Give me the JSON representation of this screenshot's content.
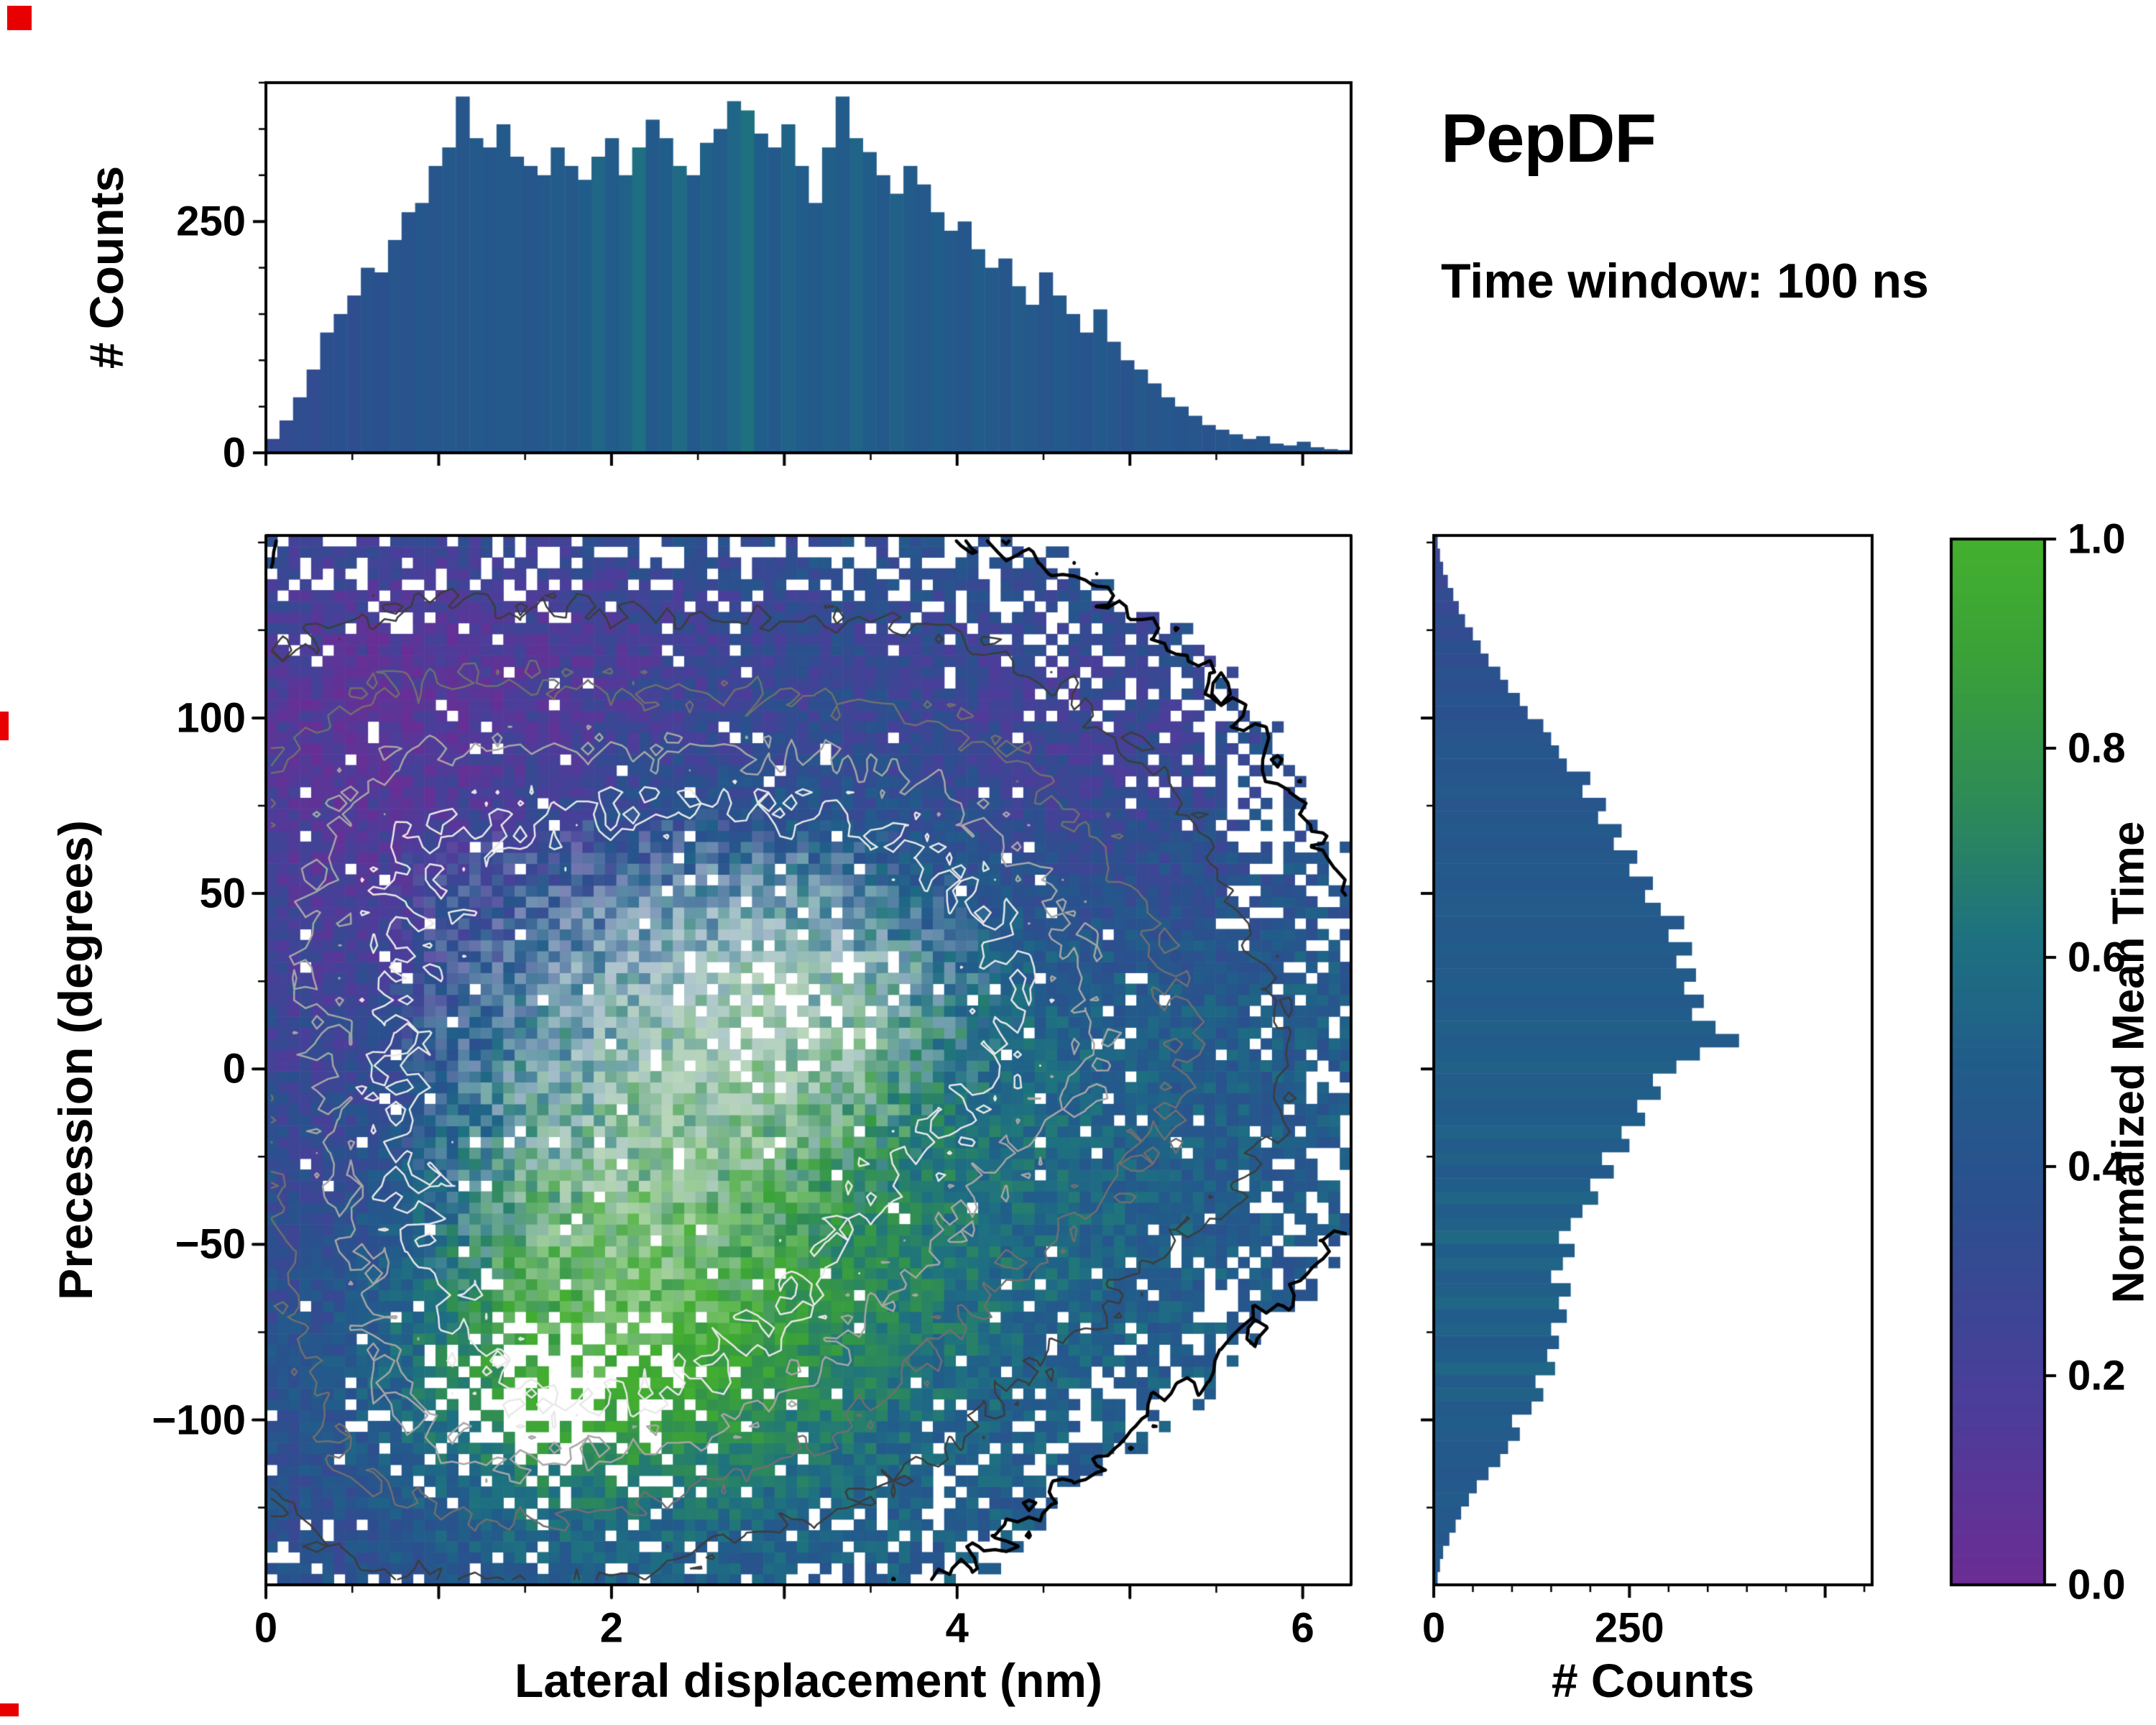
{
  "chart_data": {
    "type": "heatmap",
    "title": "PepDF",
    "subtitle": "Time window: 100 ns",
    "main": {
      "xlabel": "Lateral displacement (nm)",
      "ylabel": "Precession (degrees)",
      "xlim": [
        0,
        6.28
      ],
      "ylim": [
        -147,
        152
      ],
      "xtick_values": [
        0,
        2,
        4,
        6
      ],
      "xtick_labels": [
        "0",
        "2",
        "4",
        "6"
      ],
      "xminor_step": 0.5,
      "ytick_values": [
        100,
        50,
        0,
        -50,
        -100
      ],
      "ytick_labels": [
        "100",
        "50",
        "0",
        "−50",
        "−100"
      ],
      "yminor_step": 25,
      "grid_nx": 96,
      "grid_ny": 96,
      "seed": 1337,
      "density_blobs": [
        [
          0.55,
          2.3,
          -5,
          1.9,
          90
        ],
        [
          0.85,
          2.9,
          18,
          1.0,
          42
        ],
        [
          0.55,
          1.5,
          -35,
          0.9,
          45
        ],
        [
          0.45,
          1.2,
          70,
          1.0,
          38
        ],
        [
          0.5,
          2.5,
          -75,
          1.0,
          32
        ],
        [
          0.35,
          3.9,
          65,
          1.1,
          45
        ],
        [
          0.33,
          4.8,
          -5,
          1.1,
          40
        ],
        [
          0.3,
          1.0,
          -112,
          0.9,
          28
        ],
        [
          0.25,
          0.5,
          30,
          0.7,
          70
        ]
      ],
      "hole_blobs": [
        [
          0.35,
          2.95,
          20,
          0.35,
          14
        ],
        [
          0.75,
          1.7,
          -95,
          0.45,
          16
        ]
      ],
      "occupancy_threshold": 0.13,
      "base_hole_prob": 0.035,
      "sparse_hole_gain": 1.4,
      "value_base": 0.46,
      "value_noise": 0.22,
      "value_blobs": [
        [
          -0.28,
          0.9,
          95,
          1.3,
          50
        ],
        [
          -0.22,
          0.35,
          -30,
          0.55,
          80
        ],
        [
          -0.2,
          4.7,
          85,
          0.9,
          35
        ],
        [
          -0.1,
          2.5,
          120,
          2.0,
          25
        ],
        [
          0.32,
          2.2,
          -60,
          1.2,
          38
        ],
        [
          0.25,
          1.9,
          -92,
          0.8,
          22
        ],
        [
          0.12,
          2.9,
          -15,
          1.6,
          55
        ],
        [
          0.18,
          3.0,
          18,
          0.8,
          30
        ]
      ],
      "contour_levels": [
        0.14,
        0.32,
        0.55,
        0.8,
        1.05
      ],
      "contour_colors": [
        "#000000",
        "#3c3c3c",
        "#6f6f6f",
        "#a6a6a6",
        "#e8e8e8"
      ],
      "contour_widths": [
        4.5,
        2.5,
        2.5,
        2.5,
        2.5
      ]
    },
    "top_hist": {
      "type": "bar",
      "ylabel": "# Counts",
      "ylim": [
        0,
        400
      ],
      "ytick_values": [
        0,
        250
      ],
      "ytick_labels": [
        "0",
        "250"
      ],
      "yminor_step": 50,
      "counts": [
        15,
        35,
        60,
        90,
        130,
        150,
        170,
        200,
        195,
        230,
        260,
        270,
        310,
        330,
        385,
        340,
        330,
        355,
        320,
        310,
        300,
        330,
        310,
        295,
        320,
        340,
        300,
        330,
        360,
        340,
        310,
        300,
        335,
        350,
        380,
        370,
        345,
        330,
        355,
        310,
        270,
        330,
        385,
        340,
        325,
        300,
        280,
        310,
        290,
        260,
        240,
        250,
        220,
        200,
        210,
        180,
        160,
        195,
        170,
        150,
        130,
        155,
        120,
        100,
        90,
        75,
        60,
        50,
        40,
        30,
        25,
        20,
        15,
        18,
        10,
        8,
        12,
        6,
        4,
        3
      ],
      "color_t": [
        0.3,
        0.32,
        0.35,
        0.33,
        0.36,
        0.38,
        0.35,
        0.4,
        0.38,
        0.42,
        0.4,
        0.44,
        0.42,
        0.45,
        0.43,
        0.46,
        0.44,
        0.47,
        0.45,
        0.43,
        0.46,
        0.48,
        0.45,
        0.5,
        0.55,
        0.48,
        0.52,
        0.6,
        0.47,
        0.5,
        0.58,
        0.46,
        0.52,
        0.48,
        0.55,
        0.62,
        0.5,
        0.47,
        0.53,
        0.49,
        0.46,
        0.51,
        0.48,
        0.54,
        0.5,
        0.47,
        0.52,
        0.48,
        0.45,
        0.5,
        0.47,
        0.44,
        0.49,
        0.46,
        0.43,
        0.48,
        0.45,
        0.42,
        0.47,
        0.44,
        0.41,
        0.46,
        0.43,
        0.4,
        0.45,
        0.42,
        0.44,
        0.41,
        0.43,
        0.4,
        0.42,
        0.44,
        0.41,
        0.43,
        0.4,
        0.42,
        0.44,
        0.41,
        0.43,
        0.42
      ]
    },
    "right_hist": {
      "type": "bar",
      "xlabel": "# Counts",
      "xlim": [
        0,
        560
      ],
      "xtick_values": [
        0,
        250
      ],
      "xtick_labels": [
        "0",
        "250"
      ],
      "xminor_step": 50,
      "counts": [
        5,
        8,
        12,
        20,
        28,
        35,
        45,
        55,
        70,
        85,
        95,
        110,
        100,
        125,
        140,
        130,
        155,
        145,
        160,
        150,
        170,
        160,
        175,
        150,
        165,
        180,
        160,
        175,
        190,
        210,
        200,
        230,
        215,
        250,
        240,
        270,
        260,
        290,
        280,
        310,
        340,
        390,
        360,
        330,
        345,
        320,
        335,
        310,
        330,
        300,
        320,
        290,
        270,
        280,
        250,
        260,
        230,
        240,
        210,
        220,
        190,
        200,
        170,
        160,
        150,
        140,
        120,
        110,
        95,
        85,
        70,
        60,
        50,
        40,
        32,
        25,
        18,
        12,
        8,
        5
      ],
      "color_t": [
        0.45,
        0.43,
        0.46,
        0.44,
        0.47,
        0.45,
        0.48,
        0.46,
        0.44,
        0.47,
        0.45,
        0.48,
        0.5,
        0.46,
        0.52,
        0.48,
        0.55,
        0.5,
        0.47,
        0.53,
        0.49,
        0.55,
        0.51,
        0.48,
        0.54,
        0.5,
        0.57,
        0.52,
        0.49,
        0.54,
        0.5,
        0.47,
        0.52,
        0.48,
        0.53,
        0.5,
        0.47,
        0.51,
        0.48,
        0.52,
        0.5,
        0.48,
        0.51,
        0.49,
        0.47,
        0.5,
        0.48,
        0.46,
        0.49,
        0.47,
        0.45,
        0.48,
        0.46,
        0.44,
        0.47,
        0.45,
        0.43,
        0.46,
        0.44,
        0.42,
        0.45,
        0.43,
        0.41,
        0.44,
        0.42,
        0.4,
        0.38,
        0.41,
        0.36,
        0.39,
        0.34,
        0.37,
        0.32,
        0.35,
        0.3,
        0.33,
        0.28,
        0.31,
        0.26,
        0.29
      ]
    },
    "colorbar": {
      "label": "Normalized Mean Time",
      "lim": [
        0,
        1
      ],
      "tick_values": [
        1.0,
        0.8,
        0.6,
        0.4,
        0.2,
        0.0
      ],
      "tick_labels": [
        "1.0",
        "0.8",
        "0.6",
        "0.4",
        "0.2",
        "0.0"
      ],
      "stops": [
        [
          0.0,
          "#6b2d94"
        ],
        [
          0.18,
          "#4b3e9a"
        ],
        [
          0.36,
          "#2c4f8e"
        ],
        [
          0.5,
          "#215d8a"
        ],
        [
          0.62,
          "#1e7280"
        ],
        [
          0.75,
          "#2e8b57"
        ],
        [
          0.88,
          "#3aa03a"
        ],
        [
          1.0,
          "#44b02e"
        ]
      ]
    }
  }
}
